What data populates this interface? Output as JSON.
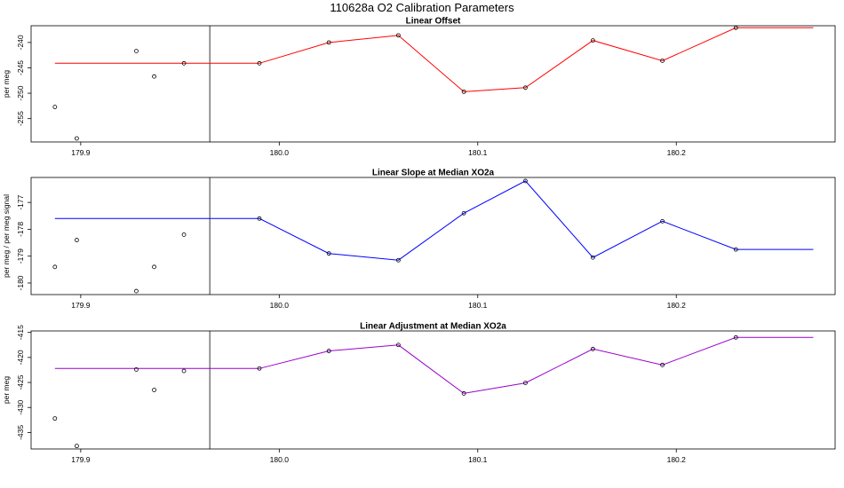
{
  "figure_title": "110628a   O2 Calibration Parameters",
  "chart_data": [
    {
      "type": "line",
      "title": "Linear Offset",
      "xlabel": "",
      "ylabel": "per meg",
      "color": "#ff0000",
      "xlim": [
        179.875,
        180.28
      ],
      "ylim": [
        -259.6,
        -236.7
      ],
      "x_ticks": [
        179.9,
        180.0,
        180.1,
        180.2
      ],
      "x_tick_labels": [
        "179.9",
        "180.0",
        "180.1",
        "180.2"
      ],
      "y_ticks": [
        -240,
        -245,
        -250,
        -255
      ],
      "y_tick_labels": [
        "-240",
        "-245",
        "-250",
        "-255"
      ],
      "vline_x": 179.965,
      "line_start_x": 179.887,
      "line_end_x": 180.269,
      "points": {
        "x": [
          179.887,
          179.898,
          179.928,
          179.937,
          179.952
        ],
        "y": [
          -252.7,
          -258.9,
          -241.7,
          -246.7,
          -244.1
        ]
      },
      "series": [
        {
          "name": "fit",
          "x": [
            179.99,
            180.025,
            180.06,
            180.093,
            180.124,
            180.158,
            180.193,
            180.23
          ],
          "y": [
            -244.1,
            -240.0,
            -238.6,
            -249.7,
            -248.9,
            -239.6,
            -243.6,
            -237.1
          ]
        }
      ]
    },
    {
      "type": "line",
      "title": "Linear Slope at Median XO2a",
      "xlabel": "",
      "ylabel": "per meg / per meg signal",
      "color": "#0000ff",
      "xlim": [
        179.875,
        180.28
      ],
      "ylim": [
        -180.43,
        -176.07
      ],
      "x_ticks": [
        179.9,
        180.0,
        180.1,
        180.2
      ],
      "x_tick_labels": [
        "179.9",
        "180.0",
        "180.1",
        "180.2"
      ],
      "y_ticks": [
        -177,
        -178,
        -179,
        -180
      ],
      "y_tick_labels": [
        "-177",
        "-178",
        "-179",
        "-180"
      ],
      "vline_x": 179.965,
      "line_start_x": 179.887,
      "line_end_x": 180.269,
      "points": {
        "x": [
          179.887,
          179.898,
          179.928,
          179.937,
          179.952
        ],
        "y": [
          -179.4,
          -178.4,
          -180.3,
          -179.4,
          -178.2
        ]
      },
      "series": [
        {
          "name": "fit",
          "x": [
            179.99,
            180.025,
            180.06,
            180.093,
            180.124,
            180.158,
            180.193,
            180.23
          ],
          "y": [
            -177.6,
            -178.9,
            -179.15,
            -177.4,
            -176.2,
            -179.05,
            -177.7,
            -178.75
          ]
        }
      ]
    },
    {
      "type": "line",
      "title": "Linear Adjustment at Median XO2a",
      "xlabel": "",
      "ylabel": "per meg",
      "color": "#9900cc",
      "xlim": [
        179.875,
        180.28
      ],
      "ylim": [
        -438.3,
        -414.7
      ],
      "x_ticks": [
        179.9,
        180.0,
        180.1,
        180.2
      ],
      "x_tick_labels": [
        "179.9",
        "180.0",
        "180.1",
        "180.2"
      ],
      "y_ticks": [
        -415,
        -420,
        -425,
        -430,
        -435
      ],
      "y_tick_labels": [
        "-415",
        "-420",
        "-425",
        "-430",
        "-435"
      ],
      "vline_x": 179.965,
      "line_start_x": 179.887,
      "line_end_x": 180.269,
      "points": {
        "x": [
          179.887,
          179.898,
          179.928,
          179.937,
          179.952
        ],
        "y": [
          -432.2,
          -437.7,
          -422.4,
          -426.5,
          -422.7
        ]
      },
      "series": [
        {
          "name": "fit",
          "x": [
            179.99,
            180.025,
            180.06,
            180.093,
            180.124,
            180.158,
            180.193,
            180.23
          ],
          "y": [
            -422.2,
            -418.7,
            -417.5,
            -427.2,
            -425.1,
            -418.3,
            -421.5,
            -416.0
          ]
        }
      ]
    }
  ]
}
